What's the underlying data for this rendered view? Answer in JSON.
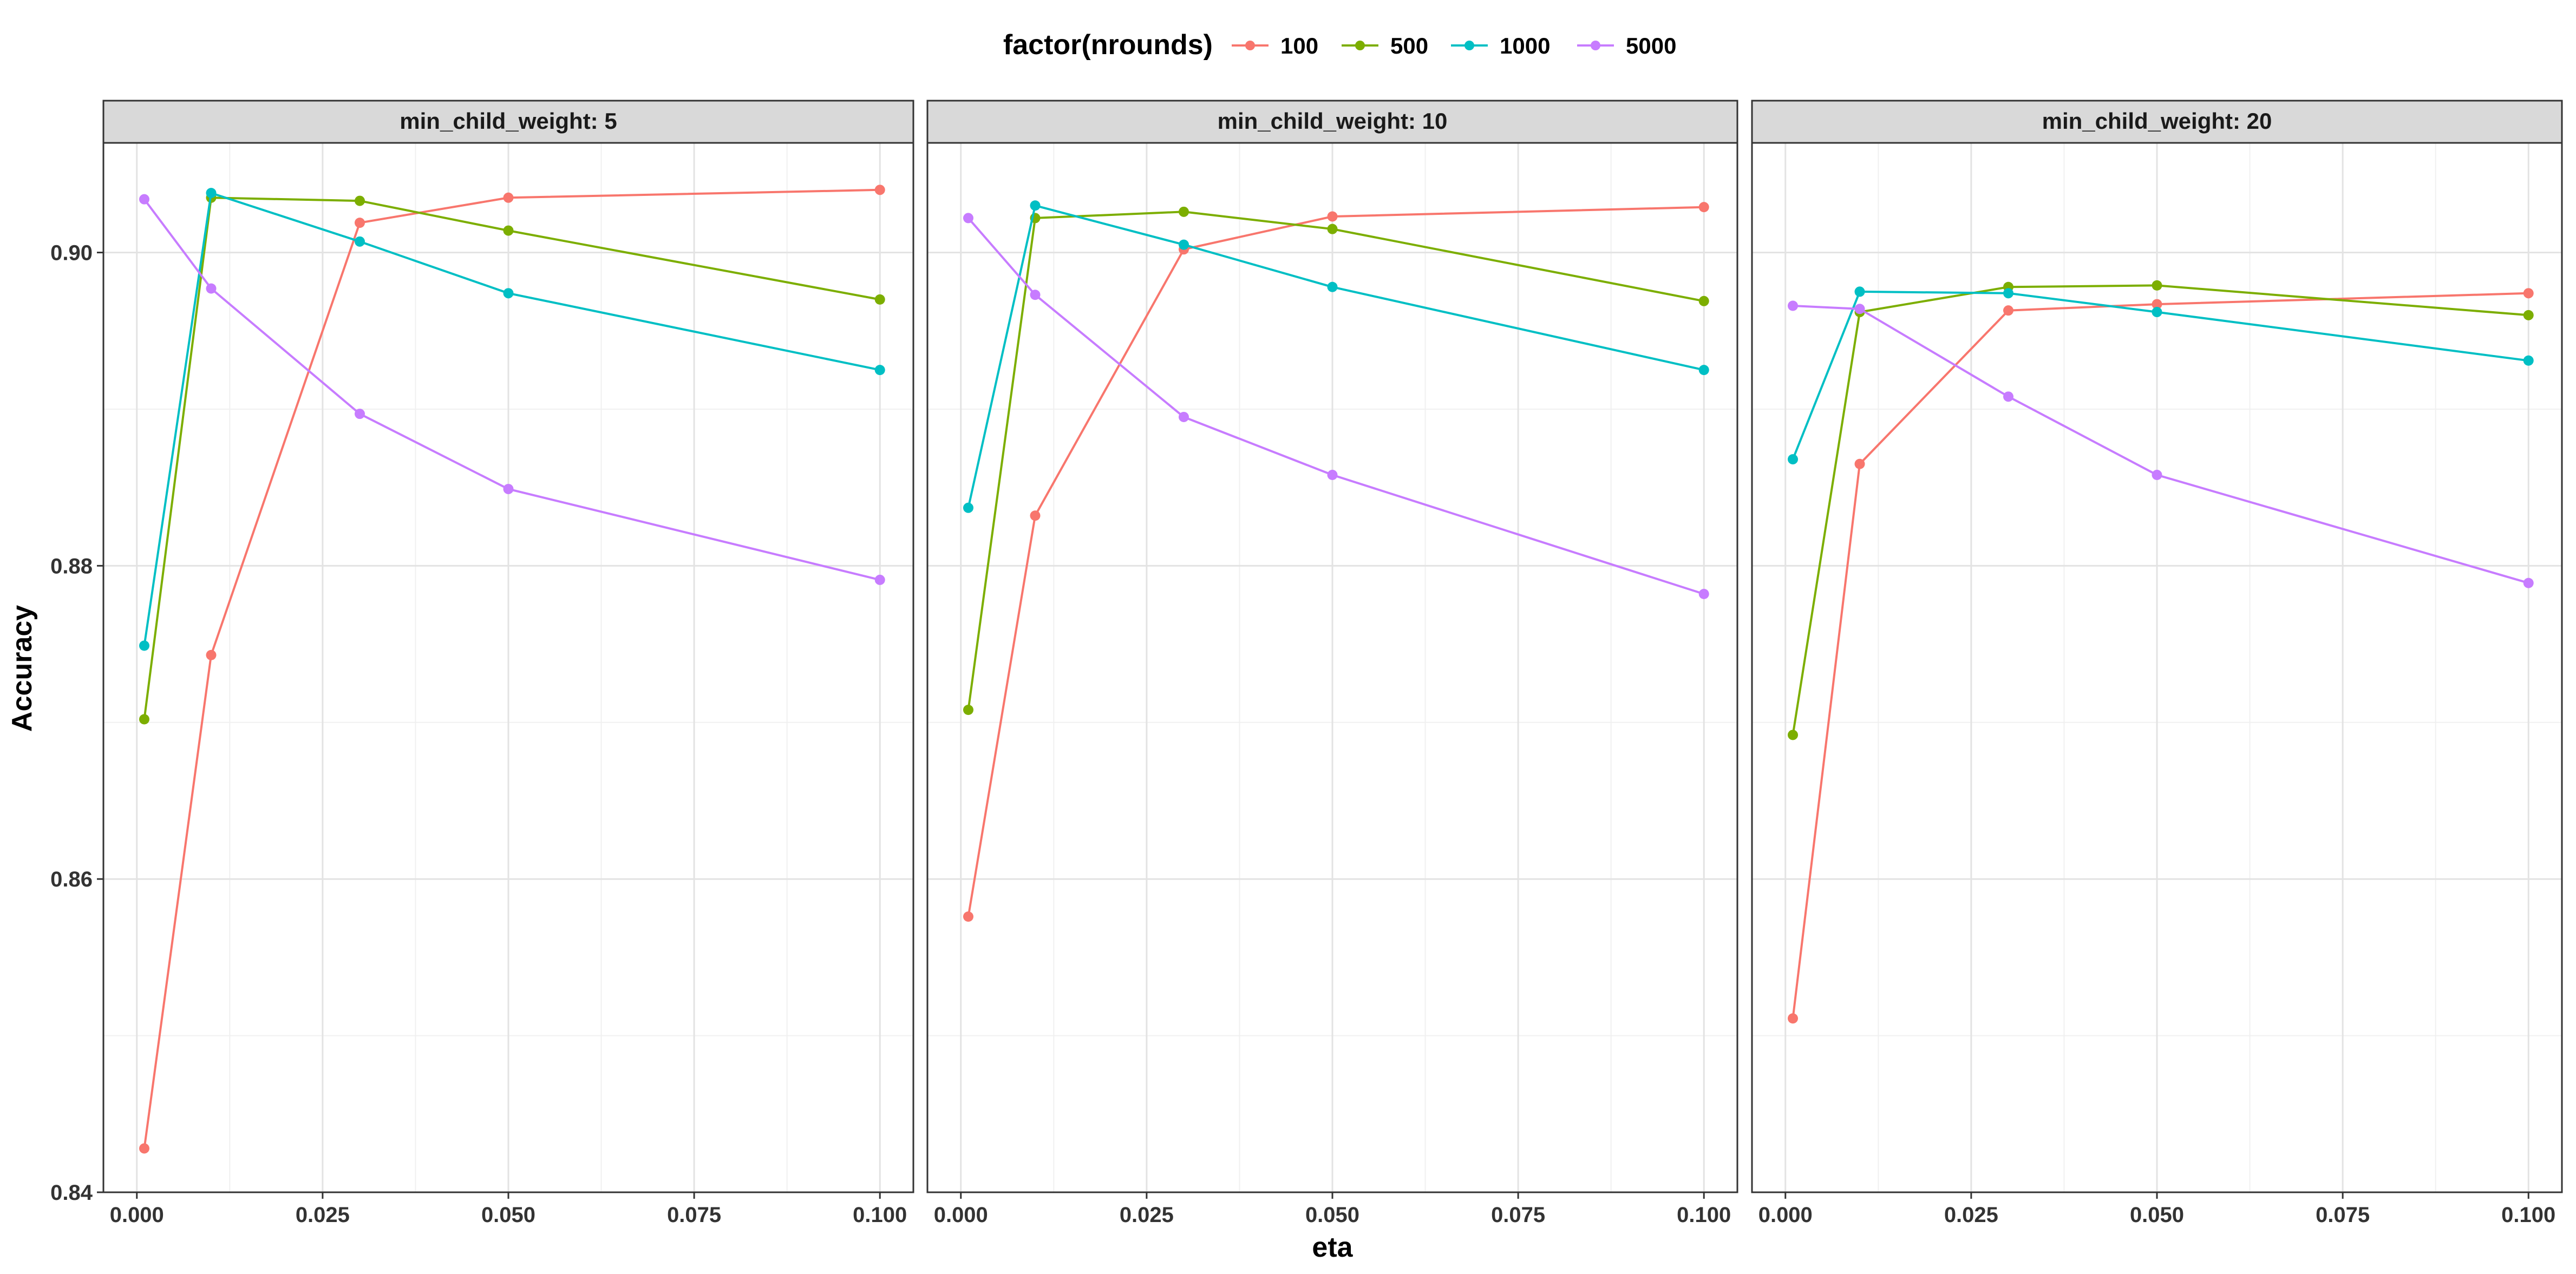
{
  "chart_data": {
    "type": "line",
    "legend": {
      "title": "factor(nrounds)",
      "position": "top",
      "items": [
        {
          "label": "100",
          "color": "#F8766D"
        },
        {
          "label": "500",
          "color": "#7CAE00"
        },
        {
          "label": "1000",
          "color": "#00BFC4"
        },
        {
          "label": "5000",
          "color": "#C77CFF"
        }
      ]
    },
    "xlabel": "eta",
    "ylabel": "Accuracy",
    "xlim": [
      0,
      0.1
    ],
    "ylim": [
      0.84,
      0.907
    ],
    "x_ticks": [
      0.0,
      0.025,
      0.05,
      0.075,
      0.1
    ],
    "x_tick_labels": [
      "0.000",
      "0.025",
      "0.050",
      "0.075",
      "0.100"
    ],
    "y_ticks": [
      0.84,
      0.86,
      0.88,
      0.9
    ],
    "y_tick_labels": [
      "0.84",
      "0.86",
      "0.88",
      "0.90"
    ],
    "grid": true,
    "x": [
      0.001,
      0.01,
      0.03,
      0.05,
      0.1
    ],
    "facets": [
      {
        "label": "min_child_weight: 5",
        "series": [
          {
            "name": "100",
            "values": [
              0.8428,
              0.8743,
              0.9019,
              0.9035,
              0.904
            ]
          },
          {
            "name": "500",
            "values": [
              0.8702,
              0.9035,
              0.9033,
              0.9014,
              0.897
            ]
          },
          {
            "name": "1000",
            "values": [
              0.8749,
              0.9038,
              0.9007,
              0.8974,
              0.8925
            ]
          },
          {
            "name": "5000",
            "values": [
              0.9034,
              0.8977,
              0.8897,
              0.8849,
              0.8791
            ]
          }
        ]
      },
      {
        "label": "min_child_weight: 10",
        "series": [
          {
            "name": "100",
            "values": [
              0.8576,
              0.8832,
              0.9002,
              0.9023,
              0.9029
            ]
          },
          {
            "name": "500",
            "values": [
              0.8708,
              0.9022,
              0.9026,
              0.9015,
              0.8969
            ]
          },
          {
            "name": "1000",
            "values": [
              0.8837,
              0.903,
              0.9005,
              0.8978,
              0.8925
            ]
          },
          {
            "name": "5000",
            "values": [
              0.9022,
              0.8973,
              0.8895,
              0.8858,
              0.8782
            ]
          }
        ]
      },
      {
        "label": "min_child_weight: 20",
        "series": [
          {
            "name": "100",
            "values": [
              0.8511,
              0.8865,
              0.8963,
              0.8967,
              0.8974
            ]
          },
          {
            "name": "500",
            "values": [
              0.8692,
              0.8962,
              0.8978,
              0.8979,
              0.896
            ]
          },
          {
            "name": "1000",
            "values": [
              0.8868,
              0.8975,
              0.8974,
              0.8962,
              0.8931
            ]
          },
          {
            "name": "5000",
            "values": [
              0.8966,
              0.8964,
              0.8908,
              0.8858,
              0.8789
            ]
          }
        ]
      }
    ]
  }
}
